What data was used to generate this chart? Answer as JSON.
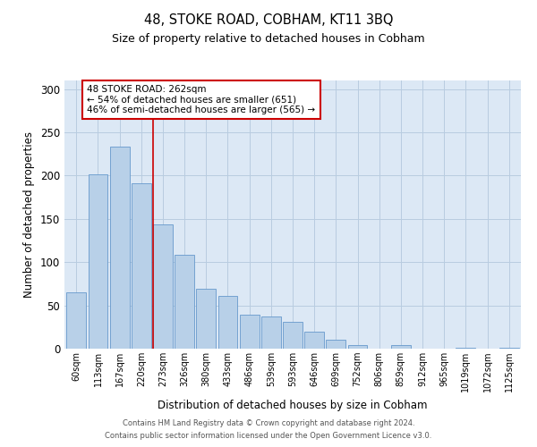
{
  "title": "48, STOKE ROAD, COBHAM, KT11 3BQ",
  "subtitle": "Size of property relative to detached houses in Cobham",
  "xlabel": "Distribution of detached houses by size in Cobham",
  "ylabel": "Number of detached properties",
  "bar_labels": [
    "60sqm",
    "113sqm",
    "167sqm",
    "220sqm",
    "273sqm",
    "326sqm",
    "380sqm",
    "433sqm",
    "486sqm",
    "539sqm",
    "593sqm",
    "646sqm",
    "699sqm",
    "752sqm",
    "806sqm",
    "859sqm",
    "912sqm",
    "965sqm",
    "1019sqm",
    "1072sqm",
    "1125sqm"
  ],
  "bar_values": [
    65,
    202,
    234,
    191,
    144,
    108,
    69,
    61,
    39,
    37,
    31,
    20,
    10,
    4,
    0,
    4,
    0,
    0,
    1,
    0,
    1
  ],
  "bar_color": "#b8d0e8",
  "bar_edge_color": "#6699cc",
  "background_color": "#dce8f5",
  "grid_color": "#b8cce0",
  "vline_x_index": 4,
  "vline_color": "#cc0000",
  "annotation_text": "48 STOKE ROAD: 262sqm\n← 54% of detached houses are smaller (651)\n46% of semi-detached houses are larger (565) →",
  "annotation_box_color": "#ffffff",
  "annotation_box_edge": "#cc0000",
  "ylim": [
    0,
    310
  ],
  "footer_line1": "Contains HM Land Registry data © Crown copyright and database right 2024.",
  "footer_line2": "Contains public sector information licensed under the Open Government Licence v3.0."
}
